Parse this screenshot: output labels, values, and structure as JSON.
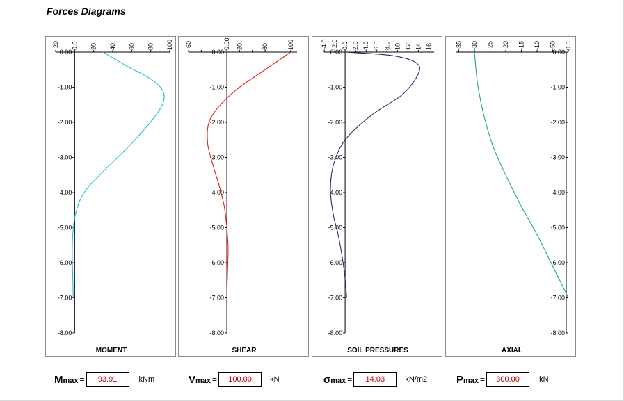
{
  "title": "Forces Diagrams",
  "charts": [
    {
      "name": "MOMENT",
      "color": "#26bcd7",
      "xticks": [
        -20,
        0,
        20,
        40,
        60,
        80,
        100
      ],
      "xtick_labels": [
        "-20",
        "0.0",
        "20.",
        "40.",
        "60.",
        "80.",
        "100"
      ],
      "xmin": -20,
      "xmax": 100,
      "x_curve": [
        30,
        55,
        82,
        93.91,
        88,
        60,
        30,
        10,
        1,
        -2,
        -2.5,
        -2,
        -1.5
      ],
      "y_curve": [
        0,
        -0.4,
        -0.8,
        -1.2,
        -1.7,
        -2.6,
        -3.4,
        -4.0,
        -4.6,
        -5.2,
        -5.8,
        -6.4,
        -7.0
      ]
    },
    {
      "name": "SHEAR",
      "color": "#e31e1e",
      "xticks": [
        -60,
        -40,
        -20,
        0,
        20,
        40,
        60,
        80,
        100
      ],
      "xtick_labels": [
        "-60",
        "",
        "",
        "0.00",
        "20.",
        "",
        "60.",
        "",
        "100"
      ],
      "xmin": -60,
      "xmax": 110,
      "x_curve": [
        100,
        60,
        20,
        -10,
        -28,
        -30,
        -22,
        -12,
        -4,
        0,
        2,
        1,
        0
      ],
      "y_curve": [
        0,
        -0.5,
        -1.0,
        -1.5,
        -2.0,
        -2.6,
        -3.2,
        -3.8,
        -4.4,
        -5.0,
        -5.6,
        -6.3,
        -7.0
      ]
    },
    {
      "name": "SOIL PRESSURES",
      "color": "#1f2e66",
      "xticks": [
        -4,
        -2,
        0,
        2,
        4,
        6,
        8,
        10,
        12,
        14,
        16
      ],
      "xtick_labels": [
        "-4.0",
        "-2.0",
        "0.0",
        "2.0",
        "4.0",
        "6.0",
        "8.0",
        "10.",
        "12.",
        "14.",
        "16."
      ],
      "xmin": -4,
      "xmax": 17,
      "x_curve": [
        0,
        9,
        13.5,
        14.03,
        11,
        5,
        0,
        -2.2,
        -2.8,
        -2.3,
        -1.2,
        -0.2,
        0.3
      ],
      "y_curve": [
        0,
        -0.1,
        -0.3,
        -0.6,
        -1.2,
        -1.8,
        -2.5,
        -3.2,
        -3.9,
        -4.6,
        -5.3,
        -6.2,
        -7.0
      ]
    },
    {
      "name": "AXIAL",
      "color": "#1fae5c",
      "xticks": [
        -350,
        -300,
        -250,
        -200,
        -150,
        -100,
        -50,
        0
      ],
      "xtick_labels": [
        "-35",
        "-30",
        "-25",
        "-20",
        "-15",
        "-10",
        "-50",
        "0.0"
      ],
      "xmin": -360,
      "xmax": 0,
      "x_curve": [
        -300,
        -290,
        -270,
        -240,
        -200,
        -150,
        -100,
        -50,
        0
      ],
      "y_curve": [
        0,
        -0.9,
        -1.8,
        -2.7,
        -3.5,
        -4.4,
        -5.2,
        -6.1,
        -7.0
      ]
    }
  ],
  "yticks": [
    0,
    -1,
    -2,
    -3,
    -4,
    -5,
    -6,
    -7,
    -8
  ],
  "ytick_labels": [
    "0.00",
    "-1.00",
    "-2.00",
    "-3.00",
    "-4.00",
    "-5.00",
    "-6.00",
    "-7.00",
    "-8.00"
  ],
  "results": [
    {
      "sym": "M",
      "sub": "max",
      "value": "93.91",
      "unit": "kNm"
    },
    {
      "sym": "V",
      "sub": "max",
      "value": "100.00",
      "unit": "kN"
    },
    {
      "sym": "σ",
      "sub": "max",
      "value": "14.03",
      "unit": "kN/m2"
    },
    {
      "sym": "P",
      "sub": "max",
      "value": "300.00",
      "unit": "kN"
    }
  ]
}
